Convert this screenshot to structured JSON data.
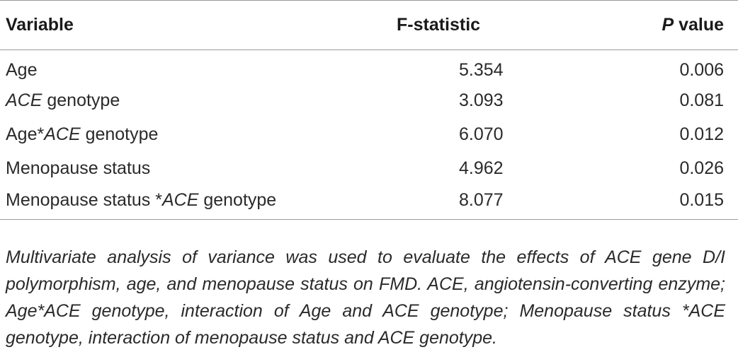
{
  "table": {
    "headers": {
      "variable": "Variable",
      "fstat": "F-statistic",
      "p_italic": "P",
      "p_rest": " value"
    },
    "rows": [
      {
        "pre": "Age",
        "italic": "",
        "post": "",
        "f": "5.354",
        "p": "0.006"
      },
      {
        "pre": "",
        "italic": "ACE",
        "post": " genotype",
        "f": "3.093",
        "p": "0.081"
      },
      {
        "pre": "Age*",
        "italic": "ACE",
        "post": " genotype",
        "f": "6.070",
        "p": "0.012"
      },
      {
        "pre": "Menopause status",
        "italic": "",
        "post": "",
        "f": "4.962",
        "p": "0.026"
      },
      {
        "pre": "Menopause status *",
        "italic": "ACE",
        "post": " genotype",
        "f": "8.077",
        "p": "0.015"
      }
    ]
  },
  "footnote": "Multivariate analysis of variance was used to evaluate the effects of ACE gene D/I polymorphism, age, and menopause status on FMD. ACE, angiotensin-converting enzyme; Age*ACE genotype, interaction of Age and ACE genotype; Menopause status *ACE genotype, interaction of menopause status and ACE genotype."
}
